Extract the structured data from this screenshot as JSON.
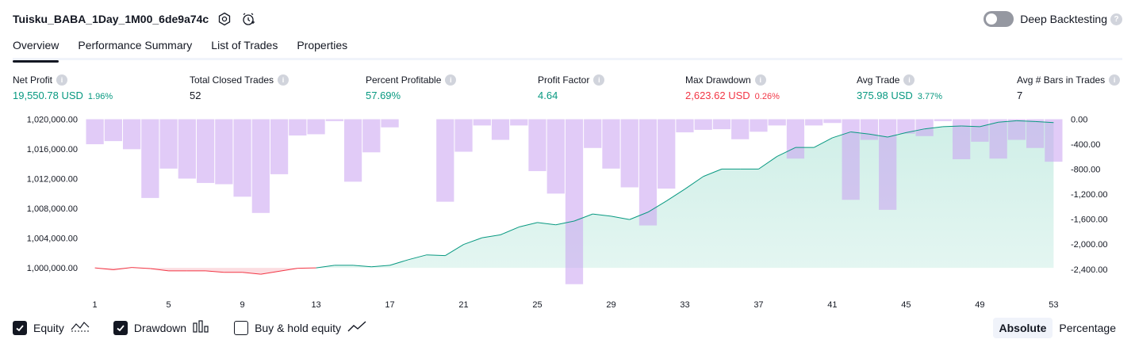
{
  "header": {
    "title": "Tuisku_BABA_1Day_1M00_6de9a74c",
    "settings_icon": "gear-icon",
    "alert_icon": "alarm-clock-icon",
    "deep_backtesting_label": "Deep Backtesting",
    "deep_backtesting_on": false,
    "help_glyph": "?"
  },
  "tabs": [
    {
      "label": "Overview",
      "active": true
    },
    {
      "label": "Performance Summary",
      "active": false
    },
    {
      "label": "List of Trades",
      "active": false
    },
    {
      "label": "Properties",
      "active": false
    }
  ],
  "metrics": {
    "info_glyph": "i",
    "net_profit": {
      "label": "Net Profit",
      "value": "19,550.78 USD",
      "pct": "1.96%"
    },
    "total_closed_trades": {
      "label": "Total Closed Trades",
      "value": "52"
    },
    "percent_profitable": {
      "label": "Percent Profitable",
      "value": "57.69%"
    },
    "profit_factor": {
      "label": "Profit Factor",
      "value": "4.64"
    },
    "max_drawdown": {
      "label": "Max Drawdown",
      "value": "2,623.62 USD",
      "pct": "0.26%"
    },
    "avg_trade": {
      "label": "Avg Trade",
      "value": "375.98 USD",
      "pct": "3.77%"
    },
    "avg_bars": {
      "label": "Avg # Bars in Trades",
      "value": "7"
    }
  },
  "colors": {
    "green": "#089981",
    "red": "#f23645",
    "drawdown_bar": "#e1bee7",
    "equity_fill": "#cdeee6"
  },
  "chart_data": {
    "type": "area",
    "x": [
      1,
      2,
      3,
      4,
      5,
      6,
      7,
      8,
      9,
      10,
      11,
      12,
      13,
      14,
      15,
      16,
      17,
      18,
      19,
      20,
      21,
      22,
      23,
      24,
      25,
      26,
      27,
      28,
      29,
      30,
      31,
      32,
      33,
      34,
      35,
      36,
      37,
      38,
      39,
      40,
      41,
      42,
      43,
      44,
      45,
      46,
      47,
      48,
      49,
      50,
      51,
      52,
      53
    ],
    "x_ticks": [
      "1",
      "5",
      "9",
      "13",
      "17",
      "21",
      "25",
      "29",
      "33",
      "37",
      "41",
      "45",
      "49",
      "53"
    ],
    "left_axis": {
      "ticks": [
        "1,020,000.00",
        "1,016,000.00",
        "1,012,000.00",
        "1,008,000.00",
        "1,004,000.00",
        "1,000,000.00"
      ],
      "ylim": [
        999000,
        1020000
      ]
    },
    "right_axis": {
      "ticks": [
        "0.00",
        "-400.00",
        "-800.00",
        "-1,200.00",
        "-1,600.00",
        "-2,000.00",
        "-2,400.00"
      ],
      "ylim": [
        -2650,
        0
      ]
    },
    "series": [
      {
        "name": "Equity",
        "axis": "left",
        "values": [
          1000000,
          999750,
          1000050,
          999900,
          999600,
          999600,
          999600,
          999400,
          999400,
          999150,
          999550,
          999950,
          1000000,
          1000350,
          1000350,
          1000150,
          1000350,
          1001100,
          1001750,
          1001650,
          1003150,
          1004050,
          1004450,
          1005500,
          1006100,
          1005800,
          1006300,
          1007250,
          1006950,
          1006500,
          1007500,
          1009000,
          1010600,
          1012300,
          1013300,
          1013300,
          1013300,
          1015000,
          1016200,
          1016200,
          1017500,
          1018300,
          1018000,
          1017600,
          1018200,
          1018700,
          1019000,
          1019100,
          1019000,
          1019600,
          1019800,
          1019700,
          1019550
        ]
      },
      {
        "name": "Drawdown",
        "axis": "right",
        "values": [
          -400,
          -350,
          -480,
          -1260,
          -790,
          -950,
          -1020,
          -1040,
          -1240,
          -1500,
          -880,
          -260,
          -240,
          -30,
          -1000,
          -530,
          -130,
          0,
          0,
          -1320,
          -520,
          -100,
          -330,
          -100,
          -830,
          -1190,
          -2640,
          -460,
          -790,
          -1090,
          -1700,
          -1110,
          -210,
          -170,
          -160,
          -320,
          -200,
          -100,
          -630,
          -100,
          -60,
          -1290,
          -330,
          -1450,
          -230,
          -270,
          -30,
          -640,
          -360,
          -630,
          -330,
          -460,
          -680
        ]
      }
    ]
  },
  "legend": {
    "equity": {
      "label": "Equity",
      "checked": true,
      "icon": "equity-line-icon"
    },
    "drawdown": {
      "label": "Drawdown",
      "checked": true,
      "icon": "bars-icon"
    },
    "buy_hold": {
      "label": "Buy & hold equity",
      "checked": false,
      "icon": "trend-line-icon"
    }
  },
  "mode": {
    "absolute": "Absolute",
    "percentage": "Percentage",
    "selected": "Absolute"
  }
}
